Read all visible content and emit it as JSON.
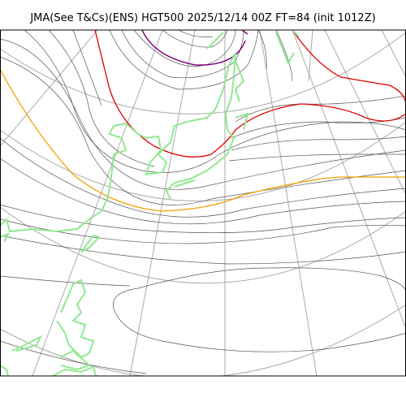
{
  "title": "JMA(See T&Cs)(ENS) HGT500 2025/12/14 00Z FT=84 (init 1012Z)",
  "colors": {
    "coastline": "#90e890",
    "grid": "#aaaaaa",
    "contour": "#555555",
    "contour_red": "#e00000",
    "contour_orange": "#f5a000",
    "contour_purple": "#800080",
    "frame": "#000000"
  }
}
